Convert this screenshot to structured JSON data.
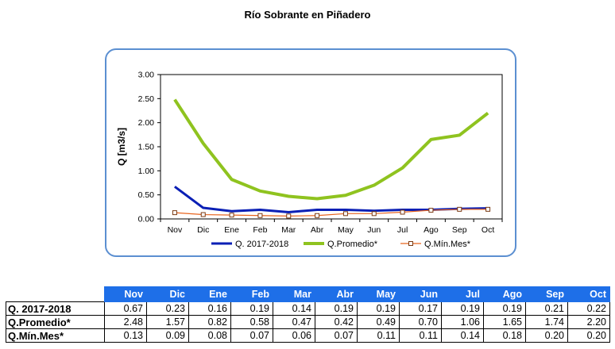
{
  "title": "Río Sobrante en Piñadero",
  "chart_data": {
    "type": "line",
    "categories": [
      "Nov",
      "Dic",
      "Ene",
      "Feb",
      "Mar",
      "Abr",
      "May",
      "Jun",
      "Jul",
      "Ago",
      "Sep",
      "Oct"
    ],
    "ylabel": "Q [m3/s]",
    "ylim": [
      0,
      3.0
    ],
    "yticks": [
      "0.00",
      "0.50",
      "1.00",
      "1.50",
      "2.00",
      "2.50",
      "3.00"
    ],
    "grid": false,
    "legend_placement": "bottom",
    "series": [
      {
        "name": "Q. 2017-2018",
        "color": "#0a1fb5",
        "marker": "none",
        "values": [
          0.67,
          0.23,
          0.16,
          0.19,
          0.14,
          0.19,
          0.19,
          0.17,
          0.19,
          0.19,
          0.21,
          0.22
        ]
      },
      {
        "name": "Q.Promedio*",
        "color": "#8fc31f",
        "marker": "none",
        "values": [
          2.48,
          1.57,
          0.82,
          0.58,
          0.47,
          0.42,
          0.49,
          0.7,
          1.06,
          1.65,
          1.74,
          2.2
        ]
      },
      {
        "name": "Q.Mín.Mes*",
        "color": "#e8641e",
        "marker": "square",
        "values": [
          0.13,
          0.09,
          0.08,
          0.07,
          0.06,
          0.07,
          0.11,
          0.11,
          0.14,
          0.18,
          0.2,
          0.2
        ]
      }
    ]
  },
  "table": {
    "headers": [
      "Nov",
      "Dic",
      "Ene",
      "Feb",
      "Mar",
      "Abr",
      "May",
      "Jun",
      "Jul",
      "Ago",
      "Sep",
      "Oct"
    ],
    "rows": [
      {
        "label": "Q. 2017-2018",
        "cells": [
          "0.67",
          "0.23",
          "0.16",
          "0.19",
          "0.14",
          "0.19",
          "0.19",
          "0.17",
          "0.19",
          "0.19",
          "0.21",
          "0.22"
        ]
      },
      {
        "label": "Q.Promedio*",
        "cells": [
          "2.48",
          "1.57",
          "0.82",
          "0.58",
          "0.47",
          "0.42",
          "0.49",
          "0.70",
          "1.06",
          "1.65",
          "1.74",
          "2.20"
        ]
      },
      {
        "label": "Q.Mín.Mes*",
        "cells": [
          "0.13",
          "0.09",
          "0.08",
          "0.07",
          "0.06",
          "0.07",
          "0.11",
          "0.11",
          "0.14",
          "0.18",
          "0.20",
          "0.20"
        ]
      }
    ]
  }
}
